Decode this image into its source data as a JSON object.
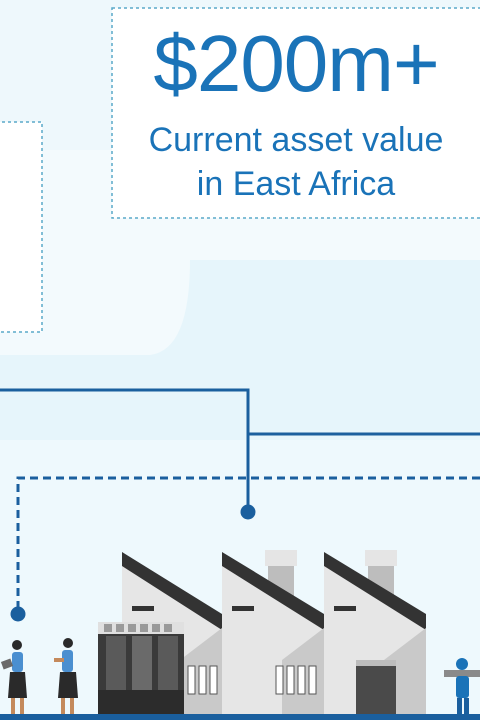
{
  "stat": {
    "value": "$200m+",
    "caption_line1": "Current asset value",
    "caption_line2": "in East Africa"
  },
  "colors": {
    "accent": "#1a73b8",
    "line": "#1a5f9e",
    "background": "#e6f5fb",
    "panel": "#ffffff",
    "factory_light": "#e8e8e8",
    "factory_mid": "#c4c4c4",
    "factory_dark": "#3a3a3a",
    "ground": "#1a5f9e"
  }
}
